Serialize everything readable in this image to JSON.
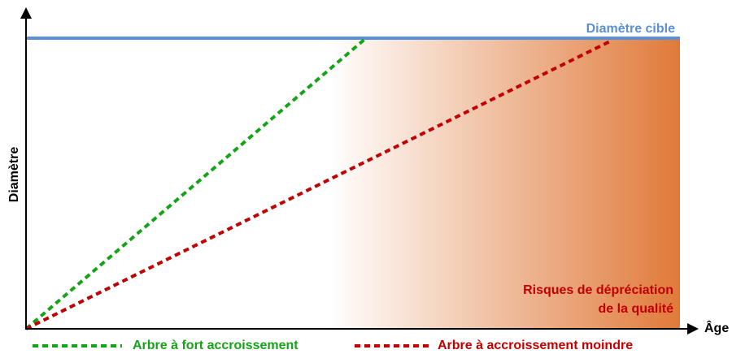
{
  "axes": {
    "y_label": "Diamètre",
    "x_label": "Âge"
  },
  "target_label": "Diamètre cible",
  "risk_zone": {
    "lines": [
      "Risques de dépréciation",
      "de la qualité"
    ]
  },
  "legend": [
    {
      "label": "Arbre à fort accroissement",
      "color": "#17a317"
    },
    {
      "label": "Arbre à accroissement moindre",
      "color": "#c00000"
    }
  ]
}
